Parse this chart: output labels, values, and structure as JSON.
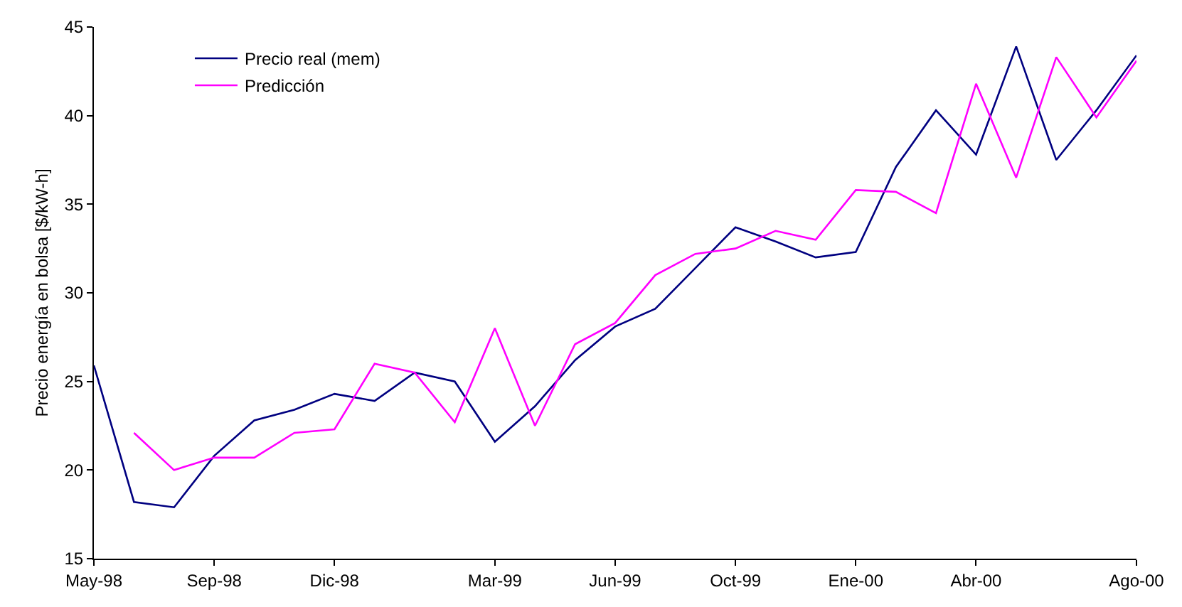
{
  "chart_data": {
    "type": "line",
    "ylabel": "Precio energía en bolsa [$/kW-h]",
    "categories": [
      "May-98",
      null,
      null,
      "Sep-98",
      null,
      null,
      "Dic-98",
      null,
      null,
      null,
      "Mar-99",
      null,
      null,
      "Jun-99",
      null,
      null,
      "Oct-99",
      null,
      null,
      "Ene-00",
      null,
      null,
      "Abr-00",
      null,
      null,
      null,
      "Ago-00"
    ],
    "series": [
      {
        "name": "Precio real (mem)",
        "color": "#000080",
        "values": [
          25.9,
          18.2,
          17.9,
          20.8,
          22.8,
          23.4,
          24.3,
          23.9,
          25.5,
          25.0,
          21.6,
          23.6,
          26.2,
          28.1,
          29.1,
          31.4,
          33.7,
          32.9,
          32.0,
          32.3,
          37.1,
          40.3,
          37.8,
          43.9,
          37.5,
          40.3,
          43.4
        ]
      },
      {
        "name": "Predicción",
        "color": "#ff00ff",
        "values": [
          null,
          22.1,
          20.0,
          20.7,
          20.7,
          22.1,
          22.3,
          26.0,
          25.5,
          22.7,
          28.0,
          22.5,
          27.1,
          28.3,
          31.0,
          32.2,
          32.5,
          33.5,
          33.0,
          35.8,
          35.7,
          34.5,
          41.8,
          36.5,
          43.3,
          39.9,
          43.1
        ]
      }
    ],
    "ylim": [
      15,
      45
    ],
    "yticks": [
      15,
      20,
      25,
      30,
      35,
      40,
      45
    ],
    "legend": "top left",
    "marker": "none",
    "line_style": "solid"
  }
}
